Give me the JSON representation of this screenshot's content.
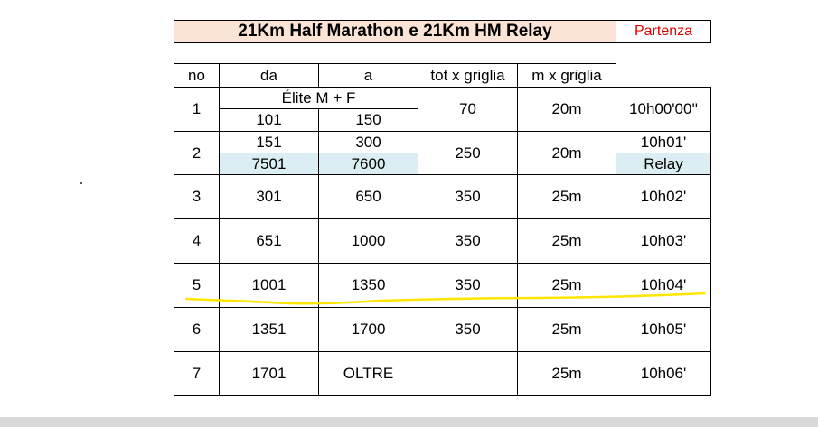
{
  "title": "21Km Half Marathon e 21Km HM Relay",
  "start_label": "Partenza",
  "table": {
    "header": [
      "no",
      "da",
      "a",
      "tot x griglia",
      "m x griglia"
    ],
    "rows": [
      {
        "no": "1",
        "group": "Élite M + F",
        "da": "101",
        "a": "150",
        "tot": "70",
        "m": "20m",
        "start": "10h00'00''"
      },
      {
        "no": "2",
        "da": "151",
        "a": "300",
        "relay_da": "7501",
        "relay_a": "7600",
        "tot": "250",
        "m": "20m",
        "start": "10h01'",
        "relay": "Relay"
      },
      {
        "no": "3",
        "da": "301",
        "a": "650",
        "tot": "350",
        "m": "25m",
        "start": "10h02'"
      },
      {
        "no": "4",
        "da": "651",
        "a": "1000",
        "tot": "350",
        "m": "25m",
        "start": "10h03'"
      },
      {
        "no": "5",
        "da": "1001",
        "a": "1350",
        "tot": "350",
        "m": "25m",
        "start": "10h04'"
      },
      {
        "no": "6",
        "da": "1351",
        "a": "1700",
        "tot": "350",
        "m": "25m",
        "start": "10h05'"
      },
      {
        "no": "7",
        "da": "1701",
        "a": "OLTRE",
        "m": "25m",
        "start": "10h06'"
      }
    ]
  }
}
